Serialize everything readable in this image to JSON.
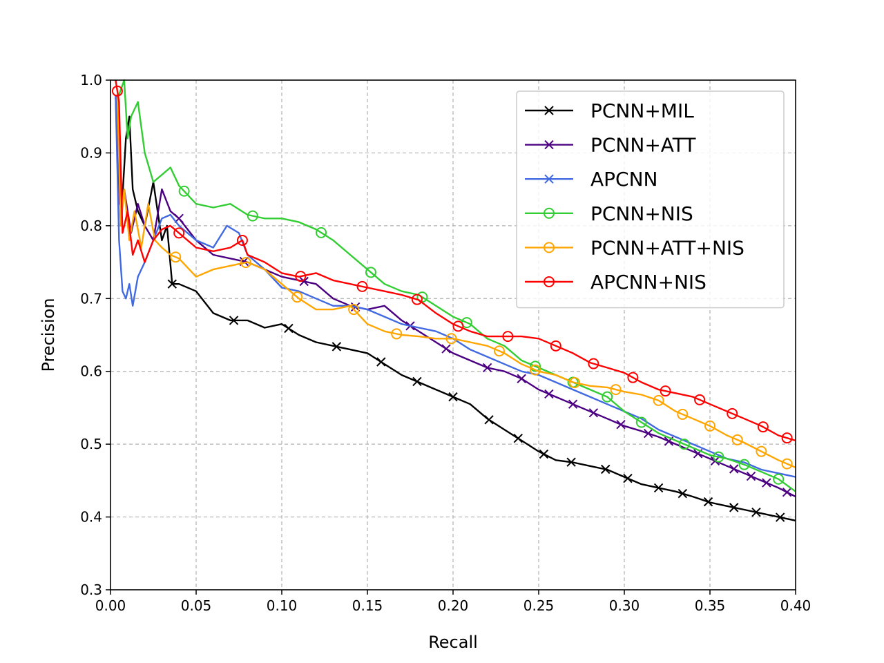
{
  "chart_data": {
    "type": "line",
    "title": "",
    "xlabel": "Recall",
    "ylabel": "Precision",
    "xlim": [
      0.0,
      0.4
    ],
    "ylim": [
      0.3,
      1.0
    ],
    "xticks": [
      0.0,
      0.05,
      0.1,
      0.15,
      0.2,
      0.25,
      0.3,
      0.35,
      0.4
    ],
    "xtick_labels": [
      "0.00",
      "0.05",
      "0.10",
      "0.15",
      "0.20",
      "0.25",
      "0.30",
      "0.35",
      "0.40"
    ],
    "yticks": [
      0.3,
      0.4,
      0.5,
      0.6,
      0.7,
      0.8,
      0.9,
      1.0
    ],
    "ytick_labels": [
      "0.3",
      "0.4",
      "0.5",
      "0.6",
      "0.7",
      "0.8",
      "0.9",
      "1.0"
    ],
    "grid": true,
    "legend_position": "top-right",
    "series": [
      {
        "name": "PCNN+MIL",
        "color": "#000000",
        "marker": "x",
        "x": [
          0.004,
          0.006,
          0.009,
          0.011,
          0.013,
          0.016,
          0.02,
          0.025,
          0.03,
          0.033,
          0.036,
          0.04,
          0.05,
          0.06,
          0.07,
          0.08,
          0.09,
          0.1,
          0.11,
          0.12,
          0.13,
          0.14,
          0.15,
          0.16,
          0.17,
          0.18,
          0.19,
          0.2,
          0.21,
          0.22,
          0.23,
          0.24,
          0.25,
          0.26,
          0.27,
          0.28,
          0.29,
          0.3,
          0.31,
          0.32,
          0.33,
          0.34,
          0.35,
          0.36,
          0.37,
          0.38,
          0.39,
          0.4
        ],
        "y": [
          0.98,
          0.8,
          0.92,
          0.95,
          0.85,
          0.82,
          0.8,
          0.86,
          0.78,
          0.8,
          0.72,
          0.72,
          0.71,
          0.68,
          0.67,
          0.67,
          0.66,
          0.665,
          0.65,
          0.64,
          0.635,
          0.63,
          0.625,
          0.61,
          0.595,
          0.585,
          0.575,
          0.565,
          0.555,
          0.535,
          0.52,
          0.505,
          0.49,
          0.478,
          0.475,
          0.47,
          0.465,
          0.455,
          0.445,
          0.44,
          0.435,
          0.428,
          0.42,
          0.415,
          0.41,
          0.405,
          0.4,
          0.395
        ],
        "marker_x": [
          0.036,
          0.072,
          0.104,
          0.132,
          0.158,
          0.179,
          0.2,
          0.221,
          0.238,
          0.253,
          0.269,
          0.289,
          0.302,
          0.32,
          0.334,
          0.349,
          0.364,
          0.377,
          0.391
        ]
      },
      {
        "name": "PCNN+ATT",
        "color": "#4b0082",
        "marker": "x",
        "x": [
          0.003,
          0.005,
          0.008,
          0.012,
          0.016,
          0.02,
          0.025,
          0.03,
          0.035,
          0.04,
          0.05,
          0.06,
          0.07,
          0.08,
          0.09,
          0.1,
          0.11,
          0.12,
          0.13,
          0.14,
          0.15,
          0.16,
          0.17,
          0.18,
          0.19,
          0.2,
          0.21,
          0.22,
          0.23,
          0.24,
          0.25,
          0.26,
          0.27,
          0.28,
          0.29,
          0.3,
          0.31,
          0.32,
          0.33,
          0.34,
          0.35,
          0.36,
          0.37,
          0.38,
          0.39,
          0.4
        ],
        "y": [
          0.98,
          0.83,
          0.85,
          0.79,
          0.83,
          0.8,
          0.78,
          0.85,
          0.82,
          0.81,
          0.78,
          0.76,
          0.755,
          0.75,
          0.74,
          0.73,
          0.725,
          0.72,
          0.7,
          0.69,
          0.685,
          0.69,
          0.67,
          0.655,
          0.64,
          0.625,
          0.615,
          0.605,
          0.6,
          0.59,
          0.575,
          0.565,
          0.555,
          0.545,
          0.535,
          0.525,
          0.518,
          0.51,
          0.5,
          0.49,
          0.48,
          0.47,
          0.46,
          0.45,
          0.44,
          0.428
        ],
        "marker_x": [
          0.04,
          0.078,
          0.113,
          0.143,
          0.175,
          0.196,
          0.22,
          0.24,
          0.256,
          0.27,
          0.282,
          0.298,
          0.314,
          0.326,
          0.343,
          0.353,
          0.364,
          0.374,
          0.383,
          0.395
        ]
      },
      {
        "name": "APCNN",
        "color": "#4169e1",
        "marker": "x",
        "x": [
          0.003,
          0.005,
          0.007,
          0.009,
          0.011,
          0.013,
          0.016,
          0.02,
          0.025,
          0.03,
          0.035,
          0.04,
          0.05,
          0.06,
          0.068,
          0.075,
          0.08,
          0.09,
          0.1,
          0.11,
          0.12,
          0.13,
          0.14,
          0.15,
          0.16,
          0.17,
          0.18,
          0.19,
          0.2,
          0.21,
          0.22,
          0.23,
          0.24,
          0.25,
          0.26,
          0.27,
          0.28,
          0.29,
          0.3,
          0.31,
          0.32,
          0.33,
          0.34,
          0.35,
          0.36,
          0.37,
          0.38,
          0.39,
          0.4
        ],
        "y": [
          0.98,
          0.78,
          0.71,
          0.7,
          0.72,
          0.69,
          0.73,
          0.75,
          0.78,
          0.81,
          0.815,
          0.8,
          0.78,
          0.77,
          0.8,
          0.79,
          0.76,
          0.74,
          0.715,
          0.71,
          0.7,
          0.69,
          0.69,
          0.685,
          0.675,
          0.665,
          0.66,
          0.655,
          0.645,
          0.63,
          0.62,
          0.61,
          0.6,
          0.595,
          0.585,
          0.575,
          0.565,
          0.555,
          0.545,
          0.535,
          0.52,
          0.51,
          0.5,
          0.49,
          0.48,
          0.475,
          0.465,
          0.46,
          0.455
        ],
        "marker_x": []
      },
      {
        "name": "PCNN+NIS",
        "color": "#32cd32",
        "marker": "o",
        "x": [
          0.005,
          0.008,
          0.01,
          0.012,
          0.016,
          0.02,
          0.025,
          0.03,
          0.035,
          0.04,
          0.05,
          0.06,
          0.07,
          0.08,
          0.09,
          0.1,
          0.11,
          0.12,
          0.13,
          0.14,
          0.15,
          0.16,
          0.17,
          0.18,
          0.19,
          0.2,
          0.21,
          0.22,
          0.23,
          0.24,
          0.25,
          0.26,
          0.27,
          0.28,
          0.29,
          0.3,
          0.31,
          0.32,
          0.33,
          0.34,
          0.35,
          0.36,
          0.37,
          0.38,
          0.39,
          0.4
        ],
        "y": [
          0.98,
          1.0,
          0.92,
          0.95,
          0.97,
          0.9,
          0.86,
          0.87,
          0.88,
          0.855,
          0.83,
          0.825,
          0.83,
          0.815,
          0.81,
          0.81,
          0.805,
          0.795,
          0.78,
          0.76,
          0.74,
          0.72,
          0.71,
          0.705,
          0.69,
          0.675,
          0.665,
          0.645,
          0.635,
          0.615,
          0.605,
          0.595,
          0.585,
          0.575,
          0.565,
          0.545,
          0.53,
          0.515,
          0.505,
          0.495,
          0.485,
          0.48,
          0.472,
          0.462,
          0.452,
          0.435
        ],
        "marker_x": [
          0.043,
          0.083,
          0.123,
          0.152,
          0.182,
          0.208,
          0.248,
          0.27,
          0.29,
          0.31,
          0.335,
          0.355,
          0.37,
          0.39
        ]
      },
      {
        "name": "PCNN+ATT+NIS",
        "color": "#ffa500",
        "marker": "o",
        "x": [
          0.004,
          0.006,
          0.008,
          0.011,
          0.014,
          0.018,
          0.022,
          0.026,
          0.03,
          0.035,
          0.04,
          0.05,
          0.06,
          0.07,
          0.08,
          0.09,
          0.1,
          0.11,
          0.12,
          0.13,
          0.14,
          0.15,
          0.16,
          0.17,
          0.18,
          0.19,
          0.2,
          0.21,
          0.22,
          0.23,
          0.24,
          0.25,
          0.26,
          0.27,
          0.28,
          0.29,
          0.3,
          0.31,
          0.32,
          0.33,
          0.34,
          0.35,
          0.36,
          0.37,
          0.38,
          0.39,
          0.4
        ],
        "y": [
          0.98,
          0.8,
          0.85,
          0.78,
          0.82,
          0.77,
          0.83,
          0.78,
          0.77,
          0.76,
          0.755,
          0.73,
          0.74,
          0.745,
          0.75,
          0.74,
          0.72,
          0.7,
          0.685,
          0.685,
          0.69,
          0.665,
          0.655,
          0.65,
          0.648,
          0.645,
          0.645,
          0.64,
          0.635,
          0.625,
          0.61,
          0.6,
          0.595,
          0.585,
          0.58,
          0.578,
          0.572,
          0.568,
          0.56,
          0.545,
          0.535,
          0.525,
          0.512,
          0.502,
          0.49,
          0.478,
          0.468
        ],
        "marker_x": [
          0.038,
          0.079,
          0.109,
          0.142,
          0.167,
          0.199,
          0.227,
          0.248,
          0.271,
          0.295,
          0.32,
          0.334,
          0.35,
          0.366,
          0.38,
          0.395
        ]
      },
      {
        "name": "APCNN+NIS",
        "color": "#ff0000",
        "marker": "o",
        "x": [
          0.003,
          0.005,
          0.007,
          0.01,
          0.013,
          0.016,
          0.02,
          0.025,
          0.03,
          0.035,
          0.04,
          0.05,
          0.06,
          0.07,
          0.077,
          0.08,
          0.09,
          0.1,
          0.11,
          0.12,
          0.13,
          0.14,
          0.15,
          0.16,
          0.17,
          0.18,
          0.19,
          0.2,
          0.21,
          0.22,
          0.23,
          0.24,
          0.25,
          0.26,
          0.27,
          0.28,
          0.29,
          0.3,
          0.31,
          0.32,
          0.33,
          0.34,
          0.35,
          0.36,
          0.37,
          0.38,
          0.39,
          0.4
        ],
        "y": [
          1.0,
          0.97,
          0.79,
          0.82,
          0.76,
          0.78,
          0.75,
          0.78,
          0.795,
          0.8,
          0.79,
          0.77,
          0.765,
          0.77,
          0.78,
          0.76,
          0.75,
          0.735,
          0.73,
          0.735,
          0.725,
          0.72,
          0.715,
          0.71,
          0.705,
          0.698,
          0.68,
          0.665,
          0.655,
          0.648,
          0.648,
          0.648,
          0.645,
          0.635,
          0.625,
          0.612,
          0.605,
          0.598,
          0.585,
          0.575,
          0.57,
          0.565,
          0.555,
          0.545,
          0.535,
          0.525,
          0.512,
          0.505
        ],
        "marker_x": [
          0.004,
          0.04,
          0.077,
          0.111,
          0.147,
          0.179,
          0.203,
          0.232,
          0.26,
          0.282,
          0.305,
          0.324,
          0.344,
          0.363,
          0.381,
          0.395
        ]
      }
    ]
  }
}
